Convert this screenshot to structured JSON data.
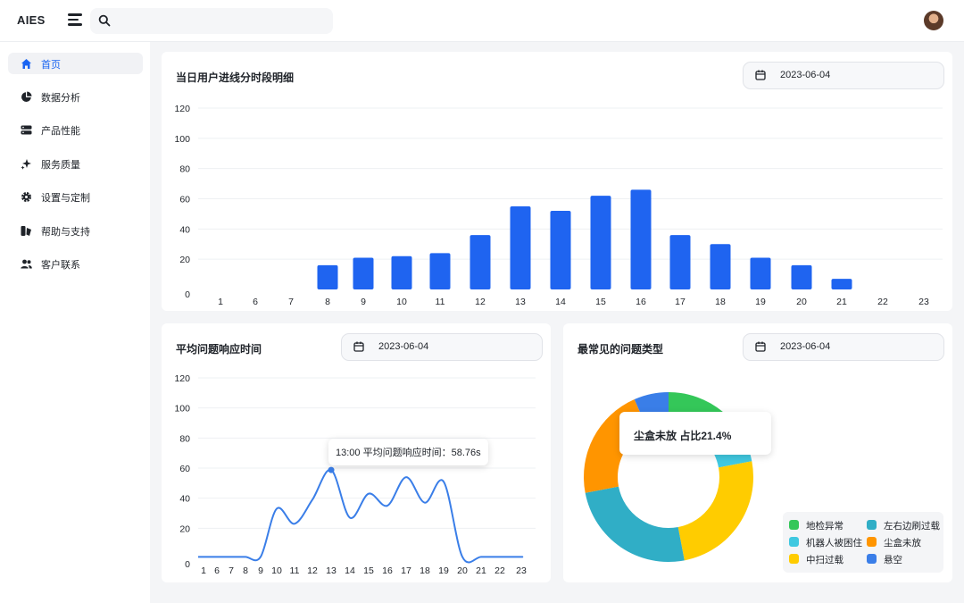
{
  "app": {
    "brand": "AIES"
  },
  "search": {
    "placeholder": ""
  },
  "sidebar": {
    "items": [
      {
        "label": "首页",
        "icon": "home-icon",
        "active": true
      },
      {
        "label": "数据分析",
        "icon": "pie-chart-icon",
        "active": false
      },
      {
        "label": "产品性能",
        "icon": "server-icon",
        "active": false
      },
      {
        "label": "服务质量",
        "icon": "sparkle-icon",
        "active": false
      },
      {
        "label": "设置与定制",
        "icon": "gear-icon",
        "active": false
      },
      {
        "label": "帮助与支持",
        "icon": "help-icon",
        "active": false
      },
      {
        "label": "客户联系",
        "icon": "users-icon",
        "active": false
      }
    ]
  },
  "cards": {
    "hourly": {
      "title": "当日用户进线分时段明细",
      "date": "2023-06-04"
    },
    "response": {
      "title": "平均问题响应时间",
      "date": "2023-06-04",
      "tooltip": "13:00 平均问题响应时间：58.76s"
    },
    "types": {
      "title": "最常见的问题类型",
      "date": "2023-06-04",
      "tooltip": "尘盒未放 占比21.4%"
    }
  },
  "colors": {
    "accent": "#1a64f2",
    "bar": "#1f64f0",
    "line": "#3a7ee8"
  },
  "chart_data": [
    {
      "type": "bar",
      "categories": [
        "1",
        "6",
        "7",
        "8",
        "9",
        "10",
        "11",
        "12",
        "13",
        "14",
        "15",
        "16",
        "17",
        "18",
        "19",
        "20",
        "21",
        "22",
        "23"
      ],
      "values": [
        0,
        0,
        0,
        16,
        21,
        22,
        24,
        36,
        55,
        52,
        62,
        66,
        36,
        30,
        21,
        16,
        7,
        0,
        0
      ],
      "yticks": [
        0,
        20,
        40,
        60,
        80,
        100,
        120
      ],
      "ylim": [
        0,
        120
      ],
      "grid": true
    },
    {
      "type": "line",
      "categories": [
        "1",
        "6",
        "7",
        "8",
        "9",
        "10",
        "11",
        "12",
        "13",
        "14",
        "15",
        "16",
        "17",
        "18",
        "19",
        "20",
        "21",
        "22",
        "23"
      ],
      "values": [
        1,
        1,
        1,
        1,
        1,
        33,
        23,
        39,
        58.76,
        27,
        43,
        35,
        54,
        37,
        51,
        1,
        1,
        1,
        1
      ],
      "yticks": [
        0,
        20,
        40,
        60,
        80,
        100,
        120
      ],
      "ylim": [
        0,
        120
      ],
      "grid": true
    },
    {
      "type": "pie",
      "donut": true,
      "slices": [
        {
          "label": "地检异常",
          "value": 11,
          "color": "#34c759"
        },
        {
          "label": "左右边刷过载",
          "value": 25,
          "color": "#30aec6"
        },
        {
          "label": "机器人被困住",
          "value": 11,
          "color": "#40c8e0"
        },
        {
          "label": "尘盒未放",
          "value": 21.4,
          "color": "#ff9500"
        },
        {
          "label": "中扫过载",
          "value": 25,
          "color": "#ffcc00"
        },
        {
          "label": "悬空",
          "value": 6.6,
          "color": "#3a7ee8"
        }
      ],
      "draw_order": [
        "地检异常",
        "机器人被困住",
        "中扫过载",
        "左右边刷过载",
        "尘盒未放",
        "悬空"
      ],
      "legend_position": "bottom-right"
    }
  ]
}
